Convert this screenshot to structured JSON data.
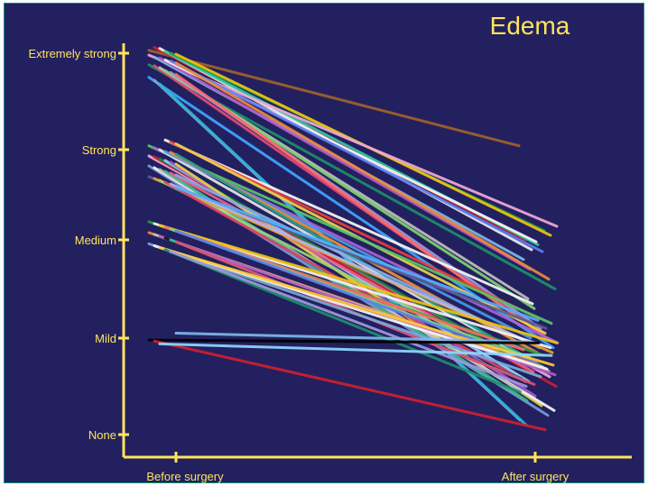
{
  "chart_data": {
    "type": "line",
    "title": "Edema",
    "xlabel": "",
    "ylabel": "",
    "categories": [
      "Before surgery",
      "After surgery"
    ],
    "y_levels": [
      "None",
      "Mild",
      "Medium",
      "Strong",
      "Extremely strong"
    ],
    "ylim": [
      0,
      4
    ],
    "grid": false,
    "legend": "none",
    "colors": {
      "background": "#23205f",
      "axis": "#ffe45c",
      "text": "#ffe45c"
    },
    "series": [
      {
        "values": [
          4.03,
          3.04
        ],
        "color": "#a0622d"
      },
      {
        "values": [
          4.06,
          2.0
        ],
        "color": "#cf1f2f"
      },
      {
        "values": [
          4.05,
          1.9
        ],
        "color": "#eceff4"
      },
      {
        "values": [
          4.02,
          1.95
        ],
        "color": "#2cc8a4"
      },
      {
        "values": [
          4.0,
          2.1
        ],
        "color": "#2a9d3d"
      },
      {
        "values": [
          3.99,
          2.05
        ],
        "color": "#f0c30f"
      },
      {
        "values": [
          3.98,
          2.15
        ],
        "color": "#f2a8d8"
      },
      {
        "values": [
          3.96,
          1.8
        ],
        "color": "#7fb7ea"
      },
      {
        "values": [
          3.95,
          1.7
        ],
        "color": "#b25cc4"
      },
      {
        "values": [
          3.93,
          1.98
        ],
        "color": "#f6f6f6"
      },
      {
        "values": [
          3.92,
          1.88
        ],
        "color": "#5e7ef2"
      },
      {
        "values": [
          3.9,
          1.6
        ],
        "color": "#ef8b3a"
      },
      {
        "values": [
          3.88,
          1.5
        ],
        "color": "#1d8f6a"
      },
      {
        "values": [
          3.87,
          1.2
        ],
        "color": "#e24a76"
      },
      {
        "values": [
          3.85,
          1.4
        ],
        "color": "#c0c0c0"
      },
      {
        "values": [
          3.82,
          1.3
        ],
        "color": "#7fd46e"
      },
      {
        "values": [
          3.8,
          1.1
        ],
        "color": "#9f9ad8"
      },
      {
        "values": [
          3.78,
          1.0
        ],
        "color": "#ff6b6b"
      },
      {
        "values": [
          3.75,
          0.9
        ],
        "color": "#3fa7ff"
      },
      {
        "values": [
          3.72,
          0.15
        ],
        "color": "#7da8d8"
      },
      {
        "values": [
          3.68,
          0.1
        ],
        "color": "#2bb4d8"
      },
      {
        "values": [
          3.1,
          1.35
        ],
        "color": "#f6f6f6"
      },
      {
        "values": [
          3.08,
          1.2
        ],
        "color": "#ea3d3d"
      },
      {
        "values": [
          3.06,
          1.05
        ],
        "color": "#f1d04b"
      },
      {
        "values": [
          3.04,
          1.15
        ],
        "color": "#57c66a"
      },
      {
        "values": [
          3.02,
          0.95
        ],
        "color": "#ab63d1"
      },
      {
        "values": [
          3.0,
          0.8
        ],
        "color": "#e6e6e6"
      },
      {
        "values": [
          2.98,
          1.0
        ],
        "color": "#4d97e8"
      },
      {
        "values": [
          2.97,
          0.85
        ],
        "color": "#f58e30"
      },
      {
        "values": [
          2.95,
          0.7
        ],
        "color": "#2a9d8f"
      },
      {
        "values": [
          2.93,
          0.6
        ],
        "color": "#f2a8d8"
      },
      {
        "values": [
          2.92,
          0.5
        ],
        "color": "#cd1d35"
      },
      {
        "values": [
          2.9,
          0.75
        ],
        "color": "#1b8040"
      },
      {
        "values": [
          2.88,
          0.55
        ],
        "color": "#8fd7ff"
      },
      {
        "values": [
          2.86,
          0.4
        ],
        "color": "#9e5ccf"
      },
      {
        "values": [
          2.84,
          0.3
        ],
        "color": "#ddd34a"
      },
      {
        "values": [
          2.82,
          0.2
        ],
        "color": "#7b9ad8"
      },
      {
        "values": [
          2.8,
          0.25
        ],
        "color": "#f8f8f8"
      },
      {
        "values": [
          2.78,
          0.45
        ],
        "color": "#b8b8b8"
      },
      {
        "values": [
          2.76,
          0.35
        ],
        "color": "#38bc8c"
      },
      {
        "values": [
          2.74,
          0.65
        ],
        "color": "#ec5f86"
      },
      {
        "values": [
          2.72,
          0.9
        ],
        "color": "#87a9e2"
      },
      {
        "values": [
          2.7,
          1.1
        ],
        "color": "#5b5b90"
      },
      {
        "values": [
          2.68,
          0.85
        ],
        "color": "#f0a020"
      },
      {
        "values": [
          2.66,
          0.75
        ],
        "color": "#9ad17b"
      },
      {
        "values": [
          2.64,
          0.55
        ],
        "color": "#de3f64"
      },
      {
        "values": [
          2.62,
          0.95
        ],
        "color": "#b5b5ea"
      },
      {
        "values": [
          2.58,
          1.18
        ],
        "color": "#4fb0ff"
      },
      {
        "values": [
          2.2,
          0.82
        ],
        "color": "#2a9d3d"
      },
      {
        "values": [
          2.18,
          0.9
        ],
        "color": "#f4f4f4"
      },
      {
        "values": [
          2.16,
          0.95
        ],
        "color": "#f0c30f"
      },
      {
        "values": [
          2.14,
          0.88
        ],
        "color": "#ff6b6b"
      },
      {
        "values": [
          2.12,
          0.8
        ],
        "color": "#7fd46e"
      },
      {
        "values": [
          2.1,
          0.75
        ],
        "color": "#5e7ef2"
      },
      {
        "values": [
          2.08,
          0.7
        ],
        "color": "#ef8b3a"
      },
      {
        "values": [
          2.06,
          0.66
        ],
        "color": "#c0c0c0"
      },
      {
        "values": [
          2.04,
          0.62
        ],
        "color": "#b25cc4"
      },
      {
        "values": [
          2.02,
          0.58
        ],
        "color": "#111111"
      },
      {
        "values": [
          2.0,
          0.55
        ],
        "color": "#2cc8a4"
      },
      {
        "values": [
          1.98,
          0.52
        ],
        "color": "#e24a76"
      },
      {
        "values": [
          1.96,
          0.6
        ],
        "color": "#7da8d8"
      },
      {
        "values": [
          1.94,
          0.68
        ],
        "color": "#f6f6f6"
      },
      {
        "values": [
          1.92,
          0.72
        ],
        "color": "#ffcc33"
      },
      {
        "values": [
          1.9,
          0.44
        ],
        "color": "#1d8f6a"
      },
      {
        "values": [
          1.88,
          0.5
        ],
        "color": "#9f9ad8"
      },
      {
        "values": [
          1.05,
          0.96
        ],
        "color": "#7fb7ea"
      },
      {
        "values": [
          0.98,
          0.95
        ],
        "color": "#000000"
      },
      {
        "values": [
          0.97,
          0.05
        ],
        "color": "#cf1f2f"
      },
      {
        "values": [
          0.94,
          0.82
        ],
        "color": "#8fd7ff"
      }
    ]
  }
}
